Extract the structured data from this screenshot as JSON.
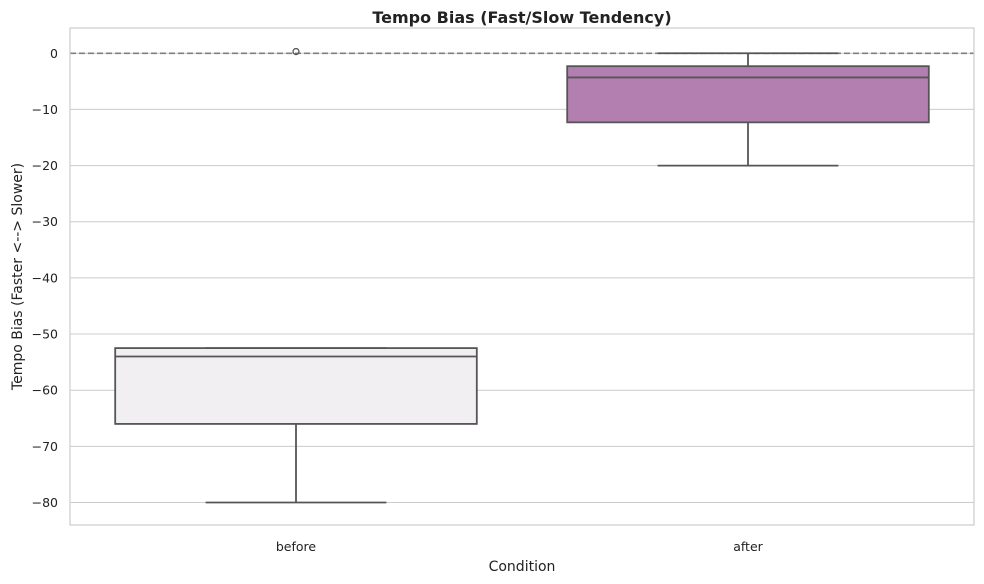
{
  "chart_data": {
    "type": "box",
    "title": "Tempo Bias (Fast/Slow Tendency)",
    "xlabel": "Condition",
    "ylabel": "Tempo Bias (Faster <--> Slower)",
    "categories": [
      "before",
      "after"
    ],
    "ylim": [
      -84,
      4.5
    ],
    "yticks": [
      0,
      -10,
      -20,
      -30,
      -40,
      -50,
      -60,
      -70,
      -80
    ],
    "ytick_labels": [
      "0",
      "−10",
      "−20",
      "−30",
      "−40",
      "−50",
      "−60",
      "−70",
      "−80"
    ],
    "grid": true,
    "reference_line": 0,
    "boxes": [
      {
        "category": "before",
        "whisker_high": -52.5,
        "q3": -52.5,
        "median": -54,
        "q1": -66,
        "whisker_low": -80,
        "outliers": [
          0.3
        ],
        "color": "#f1eff2"
      },
      {
        "category": "after",
        "whisker_high": 0,
        "q3": -2.3,
        "median": -4.3,
        "q1": -12.3,
        "whisker_low": -20,
        "outliers": [],
        "color": "#b37eb0"
      }
    ],
    "colors": {
      "box_edge": "#555555",
      "grid": "#cccccc",
      "frame": "#cccccc",
      "reference_line": "#808080"
    }
  }
}
